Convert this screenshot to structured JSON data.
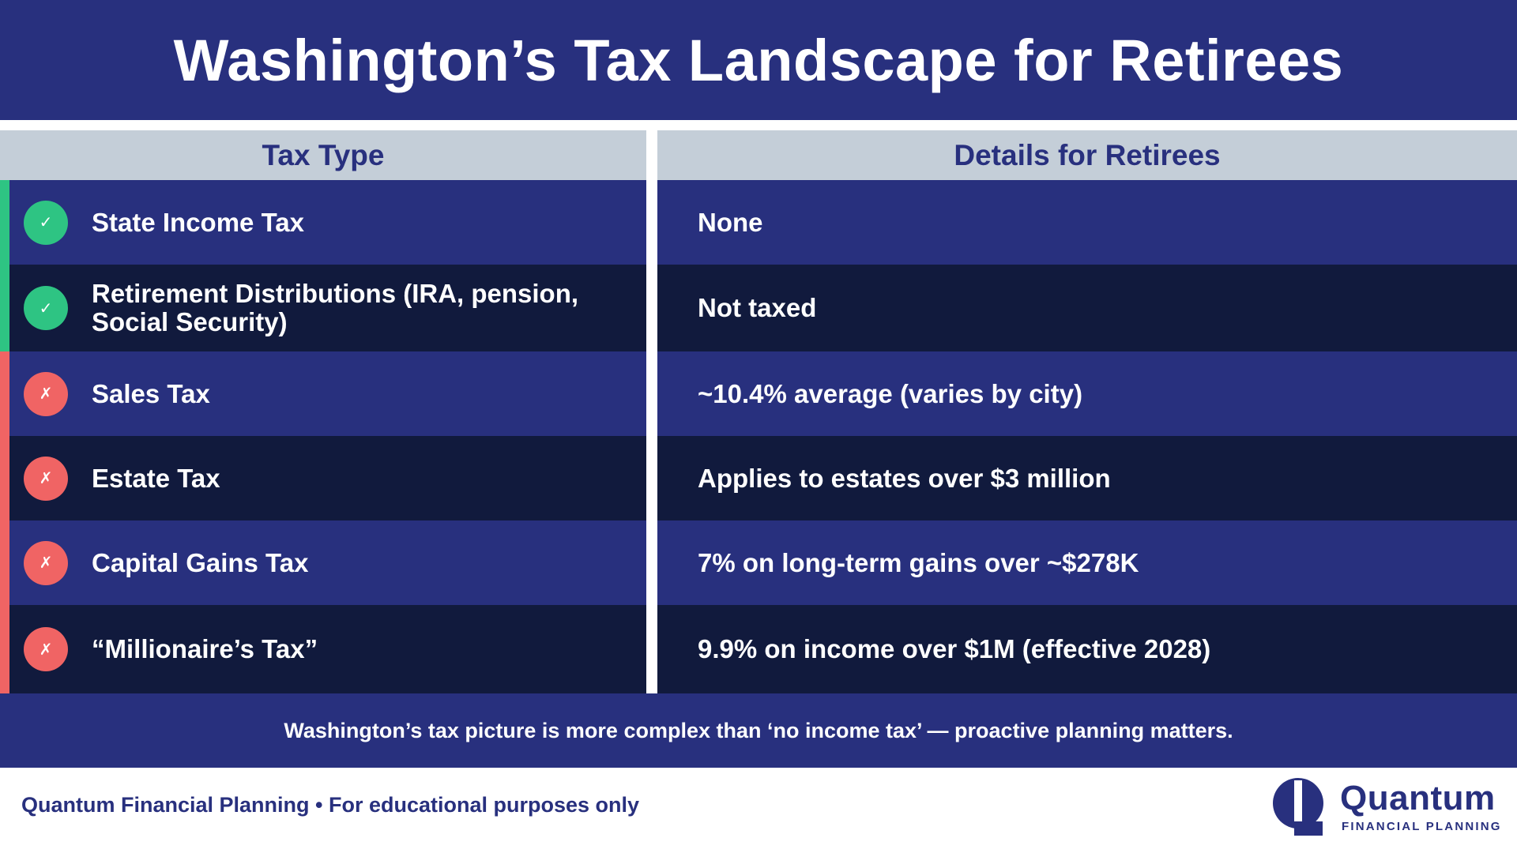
{
  "header": {
    "title": "Washington’s Tax Landscape for Retirees"
  },
  "table": {
    "columns": [
      "Tax Type",
      "Details for Retirees"
    ],
    "rows": [
      {
        "tax_type": "State Income Tax",
        "details": "None",
        "status": "favorable",
        "status_icon": "check-icon",
        "status_glyph": "✓",
        "status_color": "#2ec483"
      },
      {
        "tax_type": "Retirement Distributions  (IRA, pension, Social Security)",
        "details": "Not taxed",
        "status": "favorable",
        "status_icon": "check-icon",
        "status_glyph": "✓",
        "status_color": "#2ec483"
      },
      {
        "tax_type": "Sales Tax",
        "details": "~10.4% average (varies by city)",
        "status": "unfavorable",
        "status_icon": "x-icon",
        "status_glyph": "✗",
        "status_color": "#f06464"
      },
      {
        "tax_type": "Estate Tax",
        "details": "Applies to estates over $3 million",
        "status": "unfavorable",
        "status_icon": "x-icon",
        "status_glyph": "✗",
        "status_color": "#f06464"
      },
      {
        "tax_type": "Capital Gains Tax",
        "details": "7% on long-term gains over ~$278K",
        "status": "unfavorable",
        "status_icon": "x-icon",
        "status_glyph": "✗",
        "status_color": "#f06464"
      },
      {
        "tax_type": "“Millionaire’s Tax”",
        "details": "9.9% on income over $1M (effective 2028)",
        "status": "unfavorable",
        "status_icon": "x-icon",
        "status_glyph": "✗",
        "status_color": "#f06464"
      }
    ]
  },
  "banner": {
    "text": "Washington’s tax picture is more complex than ‘no income tax’ — proactive planning matters."
  },
  "footer": {
    "text": "Quantum Financial Planning • For educational purposes only",
    "logo": {
      "word": "Quantum",
      "subtitle": "FINANCIAL PLANNING",
      "icon": "quantum-logo-icon"
    }
  },
  "colors": {
    "brand_navy": "#28307e",
    "row_dark": "#111a3d",
    "header_gray": "#c4ced8",
    "positive": "#2ec483",
    "negative": "#f06464"
  }
}
